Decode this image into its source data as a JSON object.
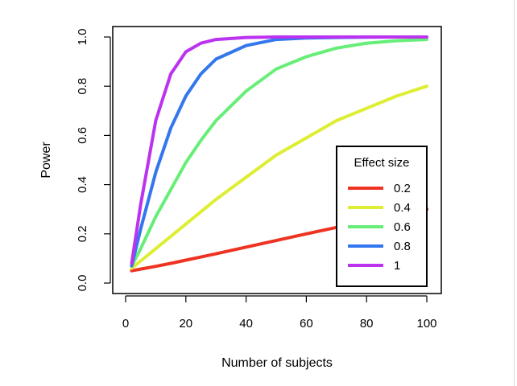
{
  "chart_data": {
    "type": "line",
    "title": "",
    "xlabel": "Number of subjects",
    "ylabel": "Power",
    "xlim": [
      0,
      100
    ],
    "ylim": [
      0,
      1
    ],
    "xticks": [
      0,
      20,
      40,
      60,
      80,
      100
    ],
    "yticks": [
      0,
      0.2,
      0.4,
      0.6,
      0.8,
      1
    ],
    "xtick_labels": [
      "0",
      "20",
      "40",
      "60",
      "80",
      "100"
    ],
    "ytick_labels": [
      "0.0",
      "0.2",
      "0.4",
      "0.6",
      "0.8",
      "1.0"
    ],
    "grid": false,
    "x": [
      2,
      5,
      10,
      15,
      20,
      25,
      30,
      40,
      50,
      60,
      70,
      80,
      90,
      100
    ],
    "legend": {
      "title": "Effect size",
      "placement": "bottom-right"
    },
    "series": [
      {
        "name": "0.2",
        "color": "#ee3322",
        "values": [
          0.05,
          0.057,
          0.068,
          0.08,
          0.093,
          0.106,
          0.119,
          0.146,
          0.173,
          0.2,
          0.226,
          0.252,
          0.277,
          0.3
        ]
      },
      {
        "name": "0.4",
        "color": "#ddee33",
        "values": [
          0.06,
          0.09,
          0.14,
          0.19,
          0.24,
          0.29,
          0.34,
          0.43,
          0.52,
          0.59,
          0.66,
          0.71,
          0.76,
          0.8
        ]
      },
      {
        "name": "0.6",
        "color": "#66ee77",
        "values": [
          0.07,
          0.14,
          0.27,
          0.38,
          0.49,
          0.58,
          0.66,
          0.78,
          0.87,
          0.92,
          0.955,
          0.975,
          0.985,
          0.99
        ]
      },
      {
        "name": "0.8",
        "color": "#3377ee",
        "values": [
          0.07,
          0.22,
          0.45,
          0.63,
          0.76,
          0.85,
          0.91,
          0.965,
          0.99,
          0.996,
          0.998,
          0.999,
          1.0,
          1.0
        ]
      },
      {
        "name": "1",
        "color": "#bb33ee",
        "values": [
          0.08,
          0.32,
          0.66,
          0.85,
          0.94,
          0.975,
          0.99,
          0.998,
          1.0,
          1.0,
          1.0,
          1.0,
          1.0,
          1.0
        ]
      }
    ]
  }
}
